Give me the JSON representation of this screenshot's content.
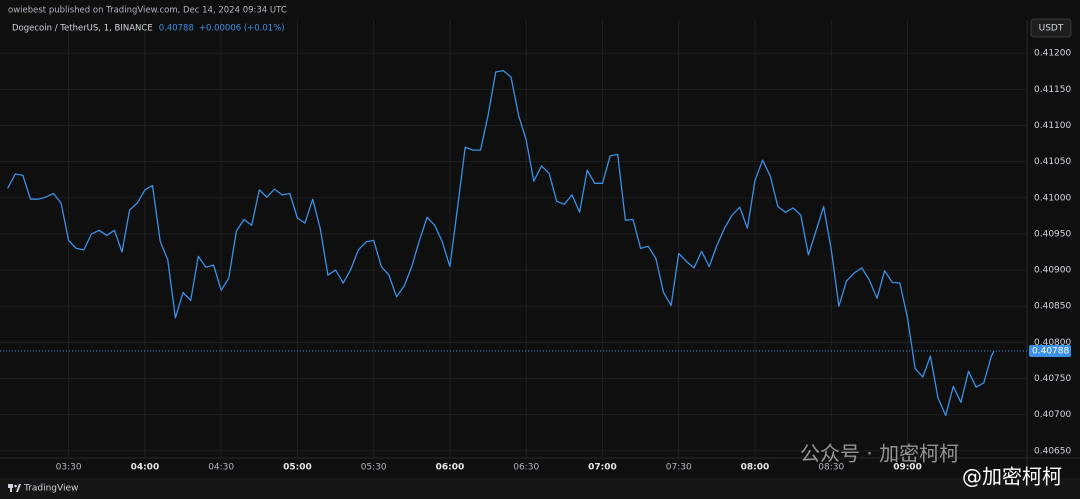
{
  "header": {
    "published": "owiebest published on TradingView.com, Dec 14, 2024 09:34 UTC",
    "footer_brand": "TradingView",
    "watermark": [
      "公众号 · 加密柯柯",
      "@加密柯柯"
    ]
  },
  "chart_data": {
    "type": "line",
    "title": "Dogecoin / TetherUS, 1, BINANCE",
    "last_price": 0.40788,
    "change": "+0.00006 (+0.01%)",
    "currency": "USDT",
    "color": "#3c8fe6",
    "grid": true,
    "xlim": [
      "03:03",
      "09:47"
    ],
    "ylim": [
      0.4064,
      0.41246
    ],
    "xticks": [
      "03:30",
      "04:00",
      "04:30",
      "05:00",
      "05:30",
      "06:00",
      "06:30",
      "07:00",
      "07:30",
      "08:00",
      "08:30",
      "09:00"
    ],
    "yticks": [
      {
        "value": 0.4065,
        "label": "0.40650"
      },
      {
        "value": 0.407,
        "label": "0.40700"
      },
      {
        "value": 0.4075,
        "label": "0.40750"
      },
      {
        "value": 0.408,
        "label": "0.40800"
      },
      {
        "value": 0.4085,
        "label": "0.40850"
      },
      {
        "value": 0.409,
        "label": "0.40900"
      },
      {
        "value": 0.4095,
        "label": "0.40950"
      },
      {
        "value": 0.41,
        "label": "0.41000"
      },
      {
        "value": 0.4105,
        "label": "0.41050"
      },
      {
        "value": 0.411,
        "label": "0.41100"
      },
      {
        "value": 0.4115,
        "label": "0.41150"
      },
      {
        "value": 0.412,
        "label": "0.41200"
      }
    ],
    "x": [
      "03:06",
      "03:09",
      "03:12",
      "03:15",
      "03:18",
      "03:21",
      "03:24",
      "03:27",
      "03:30",
      "03:33",
      "03:36",
      "03:39",
      "03:42",
      "03:45",
      "03:48",
      "03:51",
      "03:54",
      "03:57",
      "04:00",
      "04:03",
      "04:06",
      "04:09",
      "04:12",
      "04:15",
      "04:18",
      "04:21",
      "04:24",
      "04:27",
      "04:30",
      "04:33",
      "04:36",
      "04:39",
      "04:42",
      "04:45",
      "04:48",
      "04:51",
      "04:54",
      "04:57",
      "05:00",
      "05:03",
      "05:06",
      "05:09",
      "05:12",
      "05:15",
      "05:18",
      "05:21",
      "05:24",
      "05:27",
      "05:30",
      "05:33",
      "05:36",
      "05:39",
      "05:42",
      "05:45",
      "05:48",
      "05:51",
      "05:54",
      "05:57",
      "06:00",
      "06:03",
      "06:06",
      "06:09",
      "06:12",
      "06:15",
      "06:18",
      "06:21",
      "06:24",
      "06:27",
      "06:30",
      "06:33",
      "06:36",
      "06:39",
      "06:42",
      "06:45",
      "06:48",
      "06:51",
      "06:54",
      "06:57",
      "07:00",
      "07:03",
      "07:06",
      "07:09",
      "07:12",
      "07:15",
      "07:18",
      "07:21",
      "07:24",
      "07:27",
      "07:30",
      "07:33",
      "07:36",
      "07:39",
      "07:42",
      "07:45",
      "07:48",
      "07:51",
      "07:54",
      "07:57",
      "08:00",
      "08:03",
      "08:06",
      "08:09",
      "08:12",
      "08:15",
      "08:18",
      "08:21",
      "08:24",
      "08:27",
      "08:30",
      "08:33",
      "08:36",
      "08:39",
      "08:42",
      "08:45",
      "08:48",
      "08:51",
      "08:54",
      "08:57",
      "09:00",
      "09:03",
      "09:06",
      "09:09",
      "09:12",
      "09:15",
      "09:18",
      "09:21",
      "09:24",
      "09:27",
      "09:30",
      "09:33",
      "09:34"
    ],
    "values": [
      0.41013,
      0.41033,
      0.41031,
      0.40998,
      0.40998,
      0.41001,
      0.41006,
      0.40993,
      0.40941,
      0.4093,
      0.40928,
      0.4095,
      0.40955,
      0.40948,
      0.40955,
      0.40925,
      0.40983,
      0.40993,
      0.41011,
      0.41017,
      0.4094,
      0.40914,
      0.40834,
      0.40869,
      0.40858,
      0.40919,
      0.40904,
      0.40907,
      0.40872,
      0.40889,
      0.40954,
      0.4097,
      0.40962,
      0.41011,
      0.41001,
      0.41012,
      0.41004,
      0.41006,
      0.40972,
      0.40965,
      0.40998,
      0.40957,
      0.40893,
      0.409,
      0.40882,
      0.40901,
      0.40928,
      0.40939,
      0.40941,
      0.40905,
      0.40893,
      0.40863,
      0.40878,
      0.40905,
      0.40941,
      0.40973,
      0.40962,
      0.40939,
      0.40905,
      0.40987,
      0.4107,
      0.41066,
      0.41066,
      0.41114,
      0.41174,
      0.41176,
      0.41167,
      0.41114,
      0.4108,
      0.41023,
      0.41044,
      0.41034,
      0.40995,
      0.40991,
      0.41004,
      0.4098,
      0.41038,
      0.4102,
      0.4102,
      0.41058,
      0.4106,
      0.40969,
      0.4097,
      0.4093,
      0.40933,
      0.40916,
      0.40869,
      0.40851,
      0.40923,
      0.40912,
      0.40903,
      0.40926,
      0.40905,
      0.40934,
      0.40958,
      0.40976,
      0.40987,
      0.40958,
      0.41024,
      0.41052,
      0.4103,
      0.40988,
      0.4098,
      0.40986,
      0.40976,
      0.40921,
      0.40954,
      0.40988,
      0.40928,
      0.4085,
      0.40885,
      0.40896,
      0.40903,
      0.40886,
      0.40861,
      0.40899,
      0.40883,
      0.40882,
      0.40834,
      0.40764,
      0.40752,
      0.40781,
      0.40723,
      0.40699,
      0.40739,
      0.40717,
      0.4076,
      0.40738,
      0.40744,
      0.40781,
      0.40788
    ]
  }
}
